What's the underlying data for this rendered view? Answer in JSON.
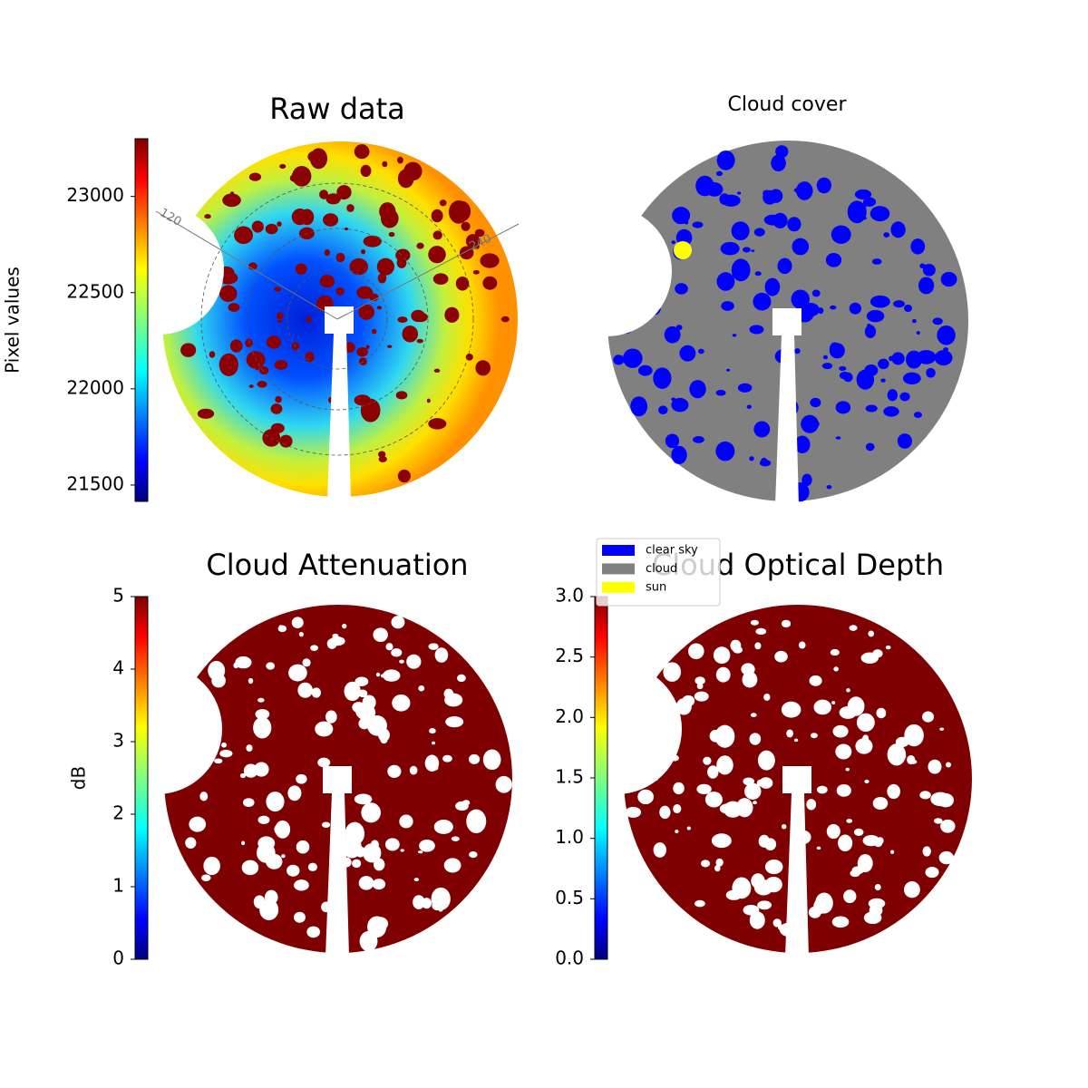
{
  "chart_data": [
    {
      "type": "image",
      "title": "Raw data",
      "colorbar_label": "Pixel values",
      "colormap": "jet",
      "clim": [
        21415,
        23300
      ],
      "cticks": [
        21500,
        22000,
        22500,
        23000
      ],
      "annotations": [
        "120",
        "240"
      ]
    },
    {
      "type": "categorical-image",
      "title": "Cloud cover",
      "series": [
        {
          "name": "clear sky",
          "color": "#0000ff"
        },
        {
          "name": "cloud",
          "color": "#808080"
        },
        {
          "name": "sun",
          "color": "#ffff00"
        }
      ]
    },
    {
      "type": "image",
      "title": "Cloud Attenuation",
      "colorbar_label": "dB",
      "colormap": "jet",
      "clim": [
        0,
        5
      ],
      "cticks": [
        0,
        1,
        2,
        3,
        4,
        5
      ]
    },
    {
      "type": "image",
      "title": "Cloud Optical Depth",
      "colormap": "jet",
      "clim": [
        0,
        3
      ],
      "cticks": [
        {
          "value": 0,
          "label": "0.0"
        },
        {
          "value": 0.5,
          "label": "0.5"
        },
        {
          "value": 1,
          "label": "1.0"
        },
        {
          "value": 1.5,
          "label": "1.5"
        },
        {
          "value": 2,
          "label": "2.0"
        },
        {
          "value": 2.5,
          "label": "2.5"
        },
        {
          "value": 3,
          "label": "3.0"
        }
      ]
    }
  ]
}
